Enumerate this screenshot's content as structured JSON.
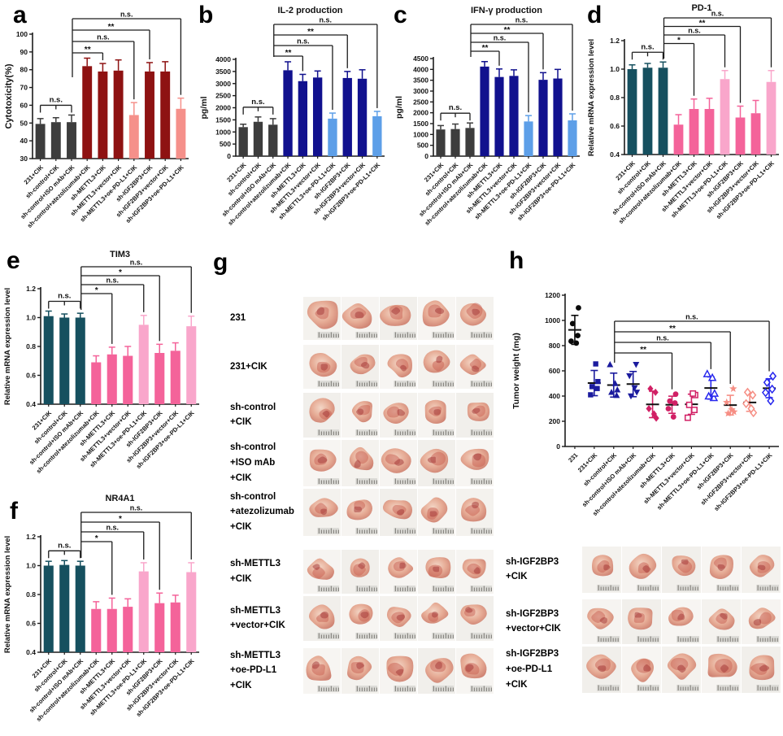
{
  "figure": {
    "panels": {
      "a": {
        "letter": "a"
      },
      "b": {
        "letter": "b"
      },
      "c": {
        "letter": "c"
      },
      "d": {
        "letter": "d"
      },
      "e": {
        "letter": "e"
      },
      "f": {
        "letter": "f"
      },
      "g": {
        "letter": "g"
      },
      "h": {
        "letter": "h"
      }
    }
  },
  "colors": {
    "gray": "#3d3d3d",
    "dark_red": "#8e1212",
    "salmon": "#f5908a",
    "navy": "#11118e",
    "light_blue": "#5d9fe8",
    "teal": "#16505f",
    "pink": "#f4639a",
    "light_pink": "#f9a6cb",
    "black": "#0a0a0a",
    "navy_marker": "#1b1b9e",
    "magenta": "#d12065",
    "blue": "#2727ee",
    "salmon_marker": "#f68e84",
    "axis": "#1c1c1c"
  },
  "chart_data": [
    {
      "id": "a",
      "type": "bar",
      "title": "",
      "ylabel": "Cytotoxicity(%)",
      "ylim": [
        30,
        100
      ],
      "ytick": 10,
      "categories": [
        "231+CIK",
        "sh-control+CIK",
        "sh-control+ISO mAb+CIK",
        "sh-control+atezolizumab+CIK",
        "sh-METTL3+CIK",
        "sh-METTL3+vector+CIK",
        "sh-METTL3+oe-PD-L1+CIK",
        "sh-IGF2BP3+CIK",
        "sh-IGF2BP3+vector+CIK",
        "sh-IGF2BP3+oe-PD-L1+CIK"
      ],
      "values": [
        49.5,
        50.5,
        50.5,
        82,
        79,
        79.5,
        54.5,
        79,
        79,
        58
      ],
      "errors": [
        3,
        2.5,
        4,
        4.5,
        4.5,
        6,
        7,
        5,
        5.5,
        6
      ],
      "bar_colors": [
        "gray",
        "gray",
        "gray",
        "dark_red",
        "dark_red",
        "dark_red",
        "salmon",
        "dark_red",
        "dark_red",
        "salmon"
      ],
      "ns_comb": "n.s.",
      "anchor": 3,
      "brackets": [
        {
          "to": 10,
          "label": "n.s."
        },
        {
          "to": 8,
          "label": "**"
        },
        {
          "to": 7,
          "label": "n.s."
        },
        {
          "to": 5,
          "label": "**"
        }
      ]
    },
    {
      "id": "b",
      "type": "bar",
      "title": "IL-2 production",
      "ylabel": "pg/ml",
      "ylim": [
        0,
        4000
      ],
      "ytick": 500,
      "categories": [
        "231+CIK",
        "sh-control+CIK",
        "sh-control+ISO mAb+CIK",
        "sh-control+atezolizumab+CIK",
        "sh-METTL3+CIK",
        "sh-METTL3+vector+CIK",
        "sh-METTL3+oe-PD-L1+CIK",
        "sh-IGF2BP3+CIK",
        "sh-IGF2BP3+vector+CIK",
        "sh-IGF2BP3+oe-PD-L1+CIK"
      ],
      "values": [
        1200,
        1420,
        1300,
        3550,
        3100,
        3250,
        1550,
        3230,
        3200,
        1650
      ],
      "errors": [
        120,
        200,
        250,
        350,
        280,
        270,
        230,
        270,
        370,
        200
      ],
      "bar_colors": [
        "gray",
        "gray",
        "gray",
        "navy",
        "navy",
        "navy",
        "light_blue",
        "navy",
        "navy",
        "light_blue"
      ],
      "ns_comb": "n.s.",
      "anchor": 3,
      "brackets": [
        {
          "to": 10,
          "label": "n.s."
        },
        {
          "to": 8,
          "label": "**"
        },
        {
          "to": 7,
          "label": "n.s."
        },
        {
          "to": 5,
          "label": "**"
        }
      ]
    },
    {
      "id": "c",
      "type": "bar",
      "title": "IFN-γ production",
      "ylabel": "pg/ml",
      "ylim": [
        0,
        4500
      ],
      "ytick": 500,
      "categories": [
        "231+CIK",
        "sh-control+CIK",
        "sh-control+ISO mAb+CIK",
        "sh-control+atezolizumab+CIK",
        "sh-METTL3+CIK",
        "sh-METTL3+vector+CIK",
        "sh-METTL3+oe-PD-L1+CIK",
        "sh-IGF2BP3+CIK",
        "sh-IGF2BP3+vector+CIK",
        "sh-IGF2BP3+oe-PD-L1+CIK"
      ],
      "values": [
        1230,
        1250,
        1300,
        4130,
        3650,
        3700,
        1600,
        3520,
        3580,
        1650
      ],
      "errors": [
        180,
        230,
        230,
        230,
        370,
        280,
        270,
        330,
        420,
        300
      ],
      "bar_colors": [
        "gray",
        "gray",
        "gray",
        "navy",
        "navy",
        "navy",
        "light_blue",
        "navy",
        "navy",
        "light_blue"
      ],
      "ns_comb": "n.s.",
      "anchor": 3,
      "brackets": [
        {
          "to": 10,
          "label": "n.s."
        },
        {
          "to": 8,
          "label": "**"
        },
        {
          "to": 7,
          "label": "n.s."
        },
        {
          "to": 5,
          "label": "**"
        }
      ]
    },
    {
      "id": "d",
      "type": "bar",
      "title": "PD-1",
      "ylabel": "Relative mRNA expression level",
      "ylim": [
        0.4,
        1.2
      ],
      "ytick": 0.2,
      "categories": [
        "231+CIK",
        "sh-control+CIK",
        "sh-control+ISO mAb+CIK",
        "sh-control+atezolizumab+CIK",
        "sh-METTL3+CIK",
        "sh-METTL3+vector+CIK",
        "sh-METTL3+oe-PD-L1+CIK",
        "sh-IGF2BP3+CIK",
        "sh-IGF2BP3+vector+CIK",
        "sh-IGF2BP3+oe-PD-L1+CIK"
      ],
      "values": [
        1.0,
        1.01,
        1.01,
        0.61,
        0.72,
        0.72,
        0.93,
        0.66,
        0.69,
        0.91
      ],
      "errors": [
        0.03,
        0.03,
        0.04,
        0.07,
        0.07,
        0.075,
        0.06,
        0.08,
        0.09,
        0.08
      ],
      "bar_colors": [
        "teal",
        "teal",
        "teal",
        "pink",
        "pink",
        "pink",
        "light_pink",
        "pink",
        "pink",
        "light_pink"
      ],
      "ns_comb": "n.s.",
      "anchor": 3,
      "brackets": [
        {
          "to": 10,
          "label": "n.s."
        },
        {
          "to": 8,
          "label": "**"
        },
        {
          "to": 7,
          "label": "n.s."
        },
        {
          "to": 5,
          "label": "*"
        }
      ]
    },
    {
      "id": "e",
      "type": "bar",
      "title": "TIM3",
      "ylabel": "Relative mRNA expression level",
      "ylim": [
        0.4,
        1.2
      ],
      "ytick": 0.2,
      "categories": [
        "231+CIK",
        "sh-control+CIK",
        "sh-control+ISO mAb+CIK",
        "sh-control+atezolizumab+CIK",
        "sh-METTL3+CIK",
        "sh-METTL3+vector+CIK",
        "sh-METTL3+oe-PD-L1+CIK",
        "sh-IGF2BP3+CIK",
        "sh-IGF2BP3+vector+CIK",
        "sh-IGF2BP3+oe-PD-L1+CIK"
      ],
      "values": [
        1.01,
        1.0,
        1.0,
        0.69,
        0.745,
        0.735,
        0.95,
        0.755,
        0.77,
        0.94
      ],
      "errors": [
        0.035,
        0.025,
        0.03,
        0.045,
        0.05,
        0.065,
        0.065,
        0.06,
        0.055,
        0.07
      ],
      "bar_colors": [
        "teal",
        "teal",
        "teal",
        "pink",
        "pink",
        "pink",
        "light_pink",
        "pink",
        "pink",
        "light_pink"
      ],
      "ns_comb": "n.s.",
      "anchor": 3,
      "brackets": [
        {
          "to": 10,
          "label": "n.s."
        },
        {
          "to": 8,
          "label": "*"
        },
        {
          "to": 7,
          "label": "n.s."
        },
        {
          "to": 5,
          "label": "*"
        }
      ]
    },
    {
      "id": "f",
      "type": "bar",
      "title": "NR4A1",
      "ylabel": "Relative mRNA expression level",
      "ylim": [
        0.4,
        1.2
      ],
      "ytick": 0.2,
      "categories": [
        "231+CIK",
        "sh-control+CIK",
        "sh-control+ISO mAb+CIK",
        "sh-control+atezolizumab+CIK",
        "sh-METTL3+CIK",
        "sh-METTL3+vector+CIK",
        "sh-METTL3+oe-PD-L1+CIK",
        "sh-IGF2BP3+CIK",
        "sh-IGF2BP3+vector+CIK",
        "sh-IGF2BP3+oe-PD-L1+CIK"
      ],
      "values": [
        1.0,
        1.005,
        1.0,
        0.7,
        0.7,
        0.715,
        0.96,
        0.74,
        0.745,
        0.955
      ],
      "errors": [
        0.03,
        0.03,
        0.03,
        0.05,
        0.075,
        0.055,
        0.06,
        0.07,
        0.05,
        0.065
      ],
      "bar_colors": [
        "teal",
        "teal",
        "teal",
        "pink",
        "pink",
        "pink",
        "light_pink",
        "pink",
        "pink",
        "light_pink"
      ],
      "ns_comb": "n.s.",
      "anchor": 3,
      "brackets": [
        {
          "to": 10,
          "label": "n.s."
        },
        {
          "to": 8,
          "label": "*"
        },
        {
          "to": 7,
          "label": "n.s."
        },
        {
          "to": 5,
          "label": "*"
        }
      ]
    },
    {
      "id": "h",
      "type": "scatter",
      "title": "",
      "ylabel": "Tumor weight (mg)",
      "ylim": [
        0,
        1200
      ],
      "ytick": 200,
      "categories": [
        "231",
        "231+CIK",
        "sh-control+CIK",
        "sh-control+ISO mAb+CIK",
        "sh-control+atezolizumab+CIK",
        "sh-METTL3+CIK",
        "sh-METTL3+vector+CIK",
        "sh-METTL3+oe-PD-L1+CIK",
        "sh-IGF2BP3+CIK",
        "sh-IGF2BP3+vector+CIK",
        "sh-IGF2BP3+oe-PD-L1+CIK"
      ],
      "groups": [
        {
          "points": [
            820,
            835,
            880,
            975,
            1100
          ],
          "mean": 925,
          "err": 115,
          "marker": "circle",
          "open": false,
          "color": "black"
        },
        {
          "points": [
            410,
            460,
            475,
            515,
            655
          ],
          "mean": 503,
          "err": 100,
          "marker": "square",
          "open": false,
          "color": "navy_marker"
        },
        {
          "points": [
            405,
            430,
            450,
            500,
            650
          ],
          "mean": 487,
          "err": 95,
          "marker": "triangle-up",
          "open": false,
          "color": "navy_marker"
        },
        {
          "points": [
            400,
            430,
            465,
            560,
            650
          ],
          "mean": 495,
          "err": 100,
          "marker": "triangle-down",
          "open": false,
          "color": "navy_marker"
        },
        {
          "points": [
            225,
            258,
            300,
            430,
            458
          ],
          "mean": 334,
          "err": 105,
          "marker": "diamond",
          "open": false,
          "color": "magenta"
        },
        {
          "points": [
            235,
            300,
            345,
            360,
            415
          ],
          "mean": 331,
          "err": 68,
          "marker": "circle",
          "open": false,
          "color": "magenta"
        },
        {
          "points": [
            228,
            290,
            330,
            408,
            420
          ],
          "mean": 335,
          "err": 80,
          "marker": "square",
          "open": true,
          "color": "magenta"
        },
        {
          "points": [
            385,
            398,
            420,
            545,
            575
          ],
          "mean": 464,
          "err": 88,
          "marker": "triangle-up",
          "open": true,
          "color": "blue"
        },
        {
          "points": [
            263,
            275,
            292,
            350,
            458
          ],
          "mean": 328,
          "err": 78,
          "marker": "star",
          "open": false,
          "color": "salmon_marker"
        },
        {
          "points": [
            268,
            300,
            340,
            408,
            430
          ],
          "mean": 349,
          "err": 70,
          "marker": "diamond",
          "open": true,
          "color": "salmon_marker"
        },
        {
          "points": [
            362,
            428,
            455,
            508,
            558
          ],
          "mean": 462,
          "err": 75,
          "marker": "diamond",
          "open": true,
          "color": "blue"
        }
      ],
      "anchor": 3,
      "brackets": [
        {
          "to": 11,
          "label": "n.s."
        },
        {
          "to": 9,
          "label": "**"
        },
        {
          "to": 8,
          "label": "n.s."
        },
        {
          "to": 6,
          "label": "**"
        }
      ]
    }
  ],
  "tumor_panel": {
    "left_rows": [
      {
        "label_lines": [
          "231"
        ]
      },
      {
        "label_lines": [
          "231+CIK"
        ]
      },
      {
        "label_lines": [
          "sh-control",
          "+CIK"
        ]
      },
      {
        "label_lines": [
          "sh-control",
          "+ISO mAb",
          "+CIK"
        ]
      },
      {
        "label_lines": [
          "sh-control",
          "+atezolizumab",
          "+CIK"
        ]
      },
      {
        "label_lines": [
          "sh-METTL3",
          "+CIK"
        ]
      },
      {
        "label_lines": [
          "sh-METTL3",
          "+vector+CIK"
        ]
      },
      {
        "label_lines": [
          "sh-METTL3",
          "+oe-PD-L1",
          "+CIK"
        ]
      }
    ],
    "right_rows": [
      {
        "label_lines": [
          "sh-IGF2BP3",
          "+CIK"
        ]
      },
      {
        "label_lines": [
          "sh-IGF2BP3",
          "+vector+CIK"
        ]
      },
      {
        "label_lines": [
          "sh-IGF2BP3",
          "+oe-PD-L1",
          "+CIK"
        ]
      }
    ]
  }
}
